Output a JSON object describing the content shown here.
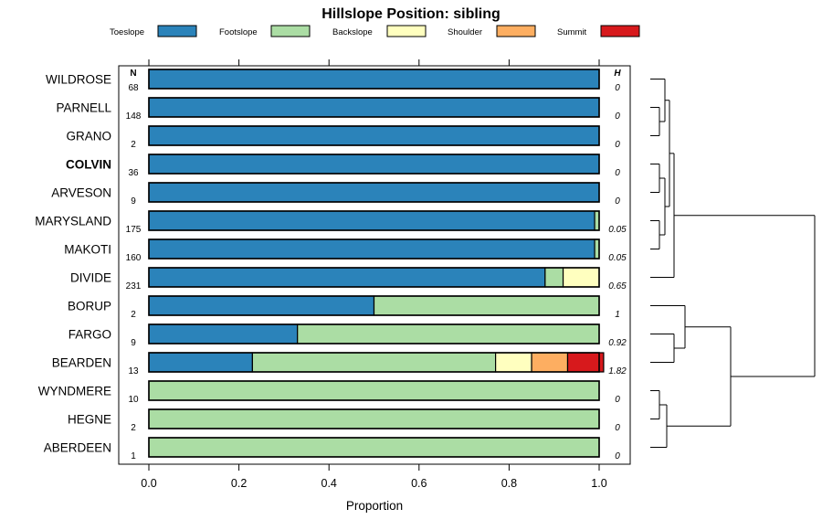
{
  "chart_data": {
    "type": "bar",
    "orientation": "horizontal",
    "stacked": true,
    "title": "Hillslope Position: sibling",
    "xlabel": "Proportion",
    "ylabel": "",
    "xlim": [
      0,
      1
    ],
    "x_ticks": [
      "0.0",
      "0.2",
      "0.4",
      "0.6",
      "0.8",
      "1.0"
    ],
    "n_header": "N",
    "h_header": "H",
    "legend_position": "top",
    "grid": false,
    "highlight_category": "COLVIN",
    "legend": [
      {
        "name": "Toeslope",
        "color": "#2B83BA"
      },
      {
        "name": "Footslope",
        "color": "#ABDDA4"
      },
      {
        "name": "Backslope",
        "color": "#FFFFBF"
      },
      {
        "name": "Shoulder",
        "color": "#FDAE61"
      },
      {
        "name": "Summit",
        "color": "#D7191C"
      }
    ],
    "categories": [
      "WILDROSE",
      "PARNELL",
      "GRANO",
      "COLVIN",
      "ARVESON",
      "MARYSLAND",
      "MAKOTI",
      "DIVIDE",
      "BORUP",
      "FARGO",
      "BEARDEN",
      "WYNDMERE",
      "HEGNE",
      "ABERDEEN"
    ],
    "n": [
      "68",
      "148",
      "2",
      "36",
      "9",
      "175",
      "160",
      "231",
      "2",
      "9",
      "13",
      "10",
      "2",
      "1"
    ],
    "h": [
      "0",
      "0",
      "0",
      "0",
      "0",
      "0.05",
      "0.05",
      "0.65",
      "1",
      "0.92",
      "1.82",
      "0",
      "0",
      "0"
    ],
    "series": [
      {
        "name": "Toeslope",
        "values": [
          1,
          1,
          1,
          1,
          1,
          0.99,
          0.99,
          0.88,
          0.5,
          0.33,
          0.23,
          0,
          0,
          0
        ]
      },
      {
        "name": "Footslope",
        "values": [
          0,
          0,
          0,
          0,
          0,
          0.01,
          0.01,
          0.04,
          0.5,
          0.67,
          0.54,
          1,
          1,
          1
        ]
      },
      {
        "name": "Backslope",
        "values": [
          0,
          0,
          0,
          0,
          0,
          0,
          0,
          0.08,
          0,
          0,
          0.08,
          0,
          0,
          0
        ]
      },
      {
        "name": "Shoulder",
        "values": [
          0,
          0,
          0,
          0,
          0,
          0,
          0,
          0,
          0,
          0,
          0.08,
          0,
          0,
          0
        ]
      },
      {
        "name": "Summit",
        "values": [
          0,
          0,
          0,
          0,
          0,
          0,
          0,
          0,
          0,
          0,
          0.08,
          0,
          0,
          0
        ]
      }
    ]
  }
}
